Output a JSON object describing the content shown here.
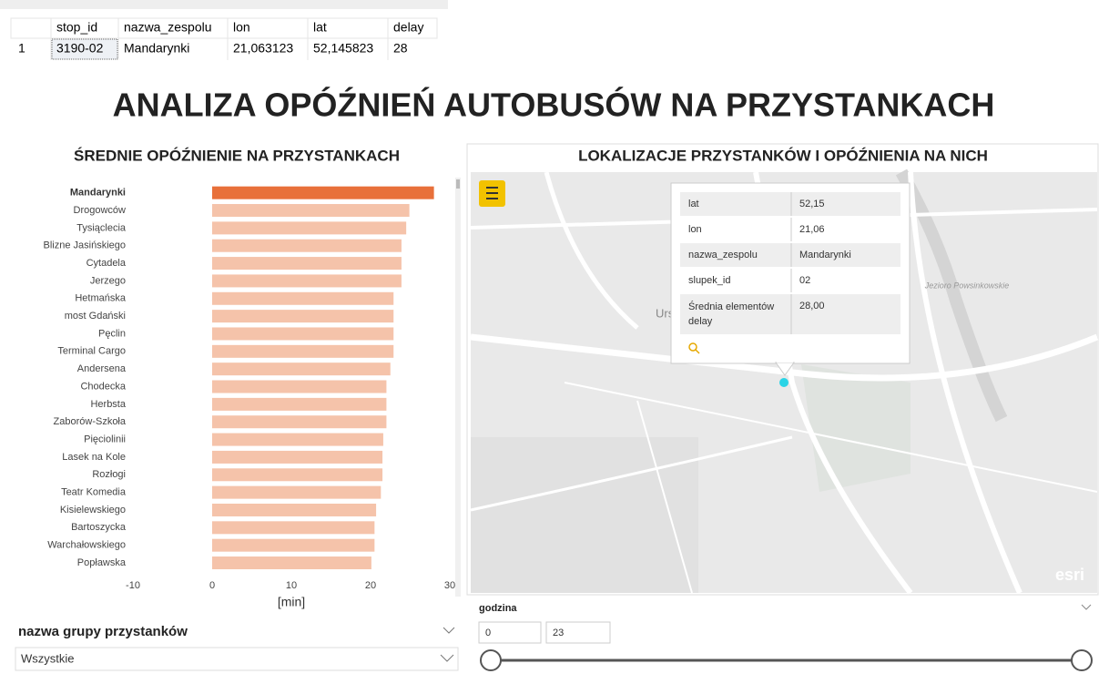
{
  "result_table": {
    "headers": [
      "stop_id",
      "nazwa_zespolu",
      "lon",
      "lat",
      "delay"
    ],
    "rows": [
      {
        "number": "1",
        "cells": [
          "3190-02",
          "Mandarynki",
          "21,063123",
          "52,145823",
          "28"
        ]
      }
    ]
  },
  "title": "ANALIZA OPÓŹNIEŃ AUTOBUSÓW NA PRZYSTANKACH",
  "chart_data": {
    "type": "hbar",
    "title": "ŚREDNIE OPÓŹNIENIE NA PRZYSTANKACH",
    "x_label": "[min]",
    "categories": [
      "Mandarynki",
      "Drogowców",
      "Tysiąclecia",
      "Blizne Jasińskiego",
      "Cytadela",
      "Jerzego",
      "Hetmańska",
      "most Gdański",
      "Pęclin",
      "Terminal Cargo",
      "Andersena",
      "Chodecka",
      "Herbsta",
      "Zaborów-Szkoła",
      "Pięciolinii",
      "Lasek na Kole",
      "Rozłogi",
      "Teatr Komedia",
      "Kisielewskiego",
      "Bartoszycka",
      "Warchałowskiego",
      "Popławska"
    ],
    "values": [
      28,
      24.9,
      24.5,
      23.9,
      23.9,
      23.9,
      22.9,
      22.9,
      22.9,
      22.9,
      22.5,
      22,
      22,
      22,
      21.6,
      21.5,
      21.5,
      21.3,
      20.7,
      20.5,
      20.5,
      20.1
    ],
    "colors": [
      "#e8703a",
      "#f5c3aa",
      "#f5c3aa",
      "#f5c3aa",
      "#f5c3aa",
      "#f5c3aa",
      "#f5c3aa",
      "#f5c3aa",
      "#f5c3aa",
      "#f5c3aa",
      "#f5c3aa",
      "#f5c3aa",
      "#f5c3aa",
      "#f5c3aa",
      "#f5c3aa",
      "#f5c3aa",
      "#f5c3aa",
      "#f5c3aa",
      "#f5c3aa",
      "#f5c3aa",
      "#f5c3aa",
      "#f5c3aa"
    ],
    "highlighted": [
      true,
      false,
      false,
      false,
      false,
      false,
      false,
      false,
      false,
      false,
      false,
      false,
      false,
      false,
      false,
      false,
      false,
      false,
      false,
      false,
      false,
      false
    ],
    "xlim": [
      -10,
      30
    ],
    "xticks": [
      -10,
      0,
      10,
      20,
      30
    ],
    "grid": false
  },
  "map": {
    "title": "LOKALIZACJE PRZYSTANKÓW I OPÓŹNIENIA NA NICH",
    "place_labels": [
      "Ursynó",
      "Jezioro Powsinkowskie"
    ],
    "attribution": "esri",
    "tooltip": [
      [
        "lat",
        "52,15"
      ],
      [
        "lon",
        "21,06"
      ],
      [
        "nazwa_zespolu",
        "Mandarynki"
      ],
      [
        "slupek_id",
        "02"
      ],
      [
        "Średnia elementów delay",
        "28,00"
      ]
    ]
  },
  "slicers": {
    "group": {
      "title": "nazwa grupy przystanków",
      "value": "Wszystkie"
    },
    "hour": {
      "title": "godzina",
      "min": "0",
      "max": "23"
    }
  }
}
